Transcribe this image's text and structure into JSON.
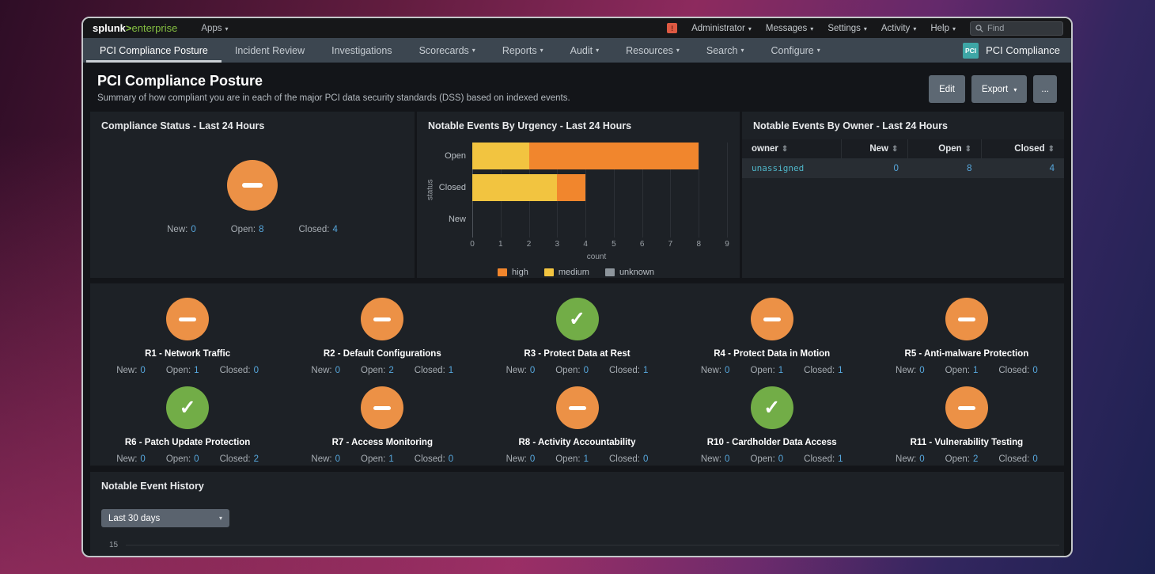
{
  "icons": {
    "caret_down": "▾",
    "check": "✓",
    "sort": "⇕",
    "notification": "!"
  },
  "topbar": {
    "logo_splunk": "splunk",
    "logo_gt": ">",
    "logo_product": "enterprise",
    "apps_label": "Apps",
    "menus": [
      "Administrator",
      "Messages",
      "Settings",
      "Activity",
      "Help"
    ],
    "find_placeholder": "Find"
  },
  "navbar": {
    "tabs": [
      {
        "label": "PCI Compliance Posture"
      },
      {
        "label": "Incident Review"
      },
      {
        "label": "Investigations"
      },
      {
        "label": "Scorecards"
      },
      {
        "label": "Reports"
      },
      {
        "label": "Audit"
      },
      {
        "label": "Resources"
      },
      {
        "label": "Search"
      },
      {
        "label": "Configure"
      }
    ],
    "app_badge": "PCI",
    "app_name": "PCI Compliance"
  },
  "header": {
    "title": "PCI Compliance Posture",
    "subtitle": "Summary of how compliant you are in each of the major PCI data security standards (DSS) based on indexed events.",
    "edit_label": "Edit",
    "export_label": "Export",
    "more_label": "..."
  },
  "labels": {
    "new": "New:",
    "open": "Open:",
    "closed": "Closed:"
  },
  "panels": {
    "compliance": {
      "title": "Compliance Status - Last 24 Hours",
      "status": "warning",
      "counts": {
        "new": "0",
        "open": "8",
        "closed": "4"
      }
    },
    "owner_table": {
      "title": "Notable Events By Owner - Last 24 Hours",
      "columns": [
        "owner",
        "New",
        "Open",
        "Closed"
      ],
      "rows": [
        {
          "owner": "unassigned",
          "new": "0",
          "open": "8",
          "closed": "4"
        }
      ]
    },
    "history": {
      "title": "Notable Event History",
      "range_label": "Last 30 days",
      "y_tick": "15"
    }
  },
  "requirements": {
    "items": [
      {
        "name": "R1 - Network Traffic",
        "status": "warning",
        "counts": {
          "new": "0",
          "open": "1",
          "closed": "0"
        }
      },
      {
        "name": "R2 - Default Configurations",
        "status": "warning",
        "counts": {
          "new": "0",
          "open": "2",
          "closed": "1"
        }
      },
      {
        "name": "R3 - Protect Data at Rest",
        "status": "success",
        "counts": {
          "new": "0",
          "open": "0",
          "closed": "1"
        }
      },
      {
        "name": "R4 - Protect Data in Motion",
        "status": "warning",
        "counts": {
          "new": "0",
          "open": "1",
          "closed": "1"
        }
      },
      {
        "name": "R5 - Anti-malware Protection",
        "status": "warning",
        "counts": {
          "new": "0",
          "open": "1",
          "closed": "0"
        }
      },
      {
        "name": "R6 - Patch Update Protection",
        "status": "success",
        "counts": {
          "new": "0",
          "open": "0",
          "closed": "2"
        }
      },
      {
        "name": "R7 - Access Monitoring",
        "status": "warning",
        "counts": {
          "new": "0",
          "open": "1",
          "closed": "0"
        }
      },
      {
        "name": "R8 - Activity Accountability",
        "status": "warning",
        "counts": {
          "new": "0",
          "open": "1",
          "closed": "0"
        }
      },
      {
        "name": "R10 - Cardholder Data Access",
        "status": "success",
        "counts": {
          "new": "0",
          "open": "0",
          "closed": "1"
        }
      },
      {
        "name": "R11 - Vulnerability Testing",
        "status": "warning",
        "counts": {
          "new": "0",
          "open": "2",
          "closed": "0"
        }
      }
    ]
  },
  "chart_data": {
    "type": "bar",
    "orientation": "horizontal",
    "stacked": true,
    "title": "Notable Events By Urgency - Last 24 Hours",
    "categories": [
      "Open",
      "Closed",
      "New"
    ],
    "series": [
      {
        "name": "high",
        "color": "#f1862d",
        "values": [
          6,
          1,
          0
        ]
      },
      {
        "name": "medium",
        "color": "#f2c440",
        "values": [
          2,
          3,
          0
        ]
      },
      {
        "name": "unknown",
        "color": "#8d959c",
        "values": [
          0,
          0,
          0
        ]
      }
    ],
    "bars": [
      {
        "category": "Open",
        "segments": [
          {
            "series": "medium",
            "value": 2
          },
          {
            "series": "high",
            "value": 6
          }
        ]
      },
      {
        "category": "Closed",
        "segments": [
          {
            "series": "medium",
            "value": 3
          },
          {
            "series": "high",
            "value": 1
          }
        ]
      },
      {
        "category": "New",
        "segments": []
      }
    ],
    "xlabel": "count",
    "ylabel": "status",
    "xlim": [
      0,
      9
    ],
    "xticks": [
      0,
      1,
      2,
      3,
      4,
      5,
      6,
      7,
      8,
      9
    ],
    "legend": [
      "high",
      "medium",
      "unknown"
    ],
    "grid": "vertical",
    "legend_position": "bottom"
  }
}
